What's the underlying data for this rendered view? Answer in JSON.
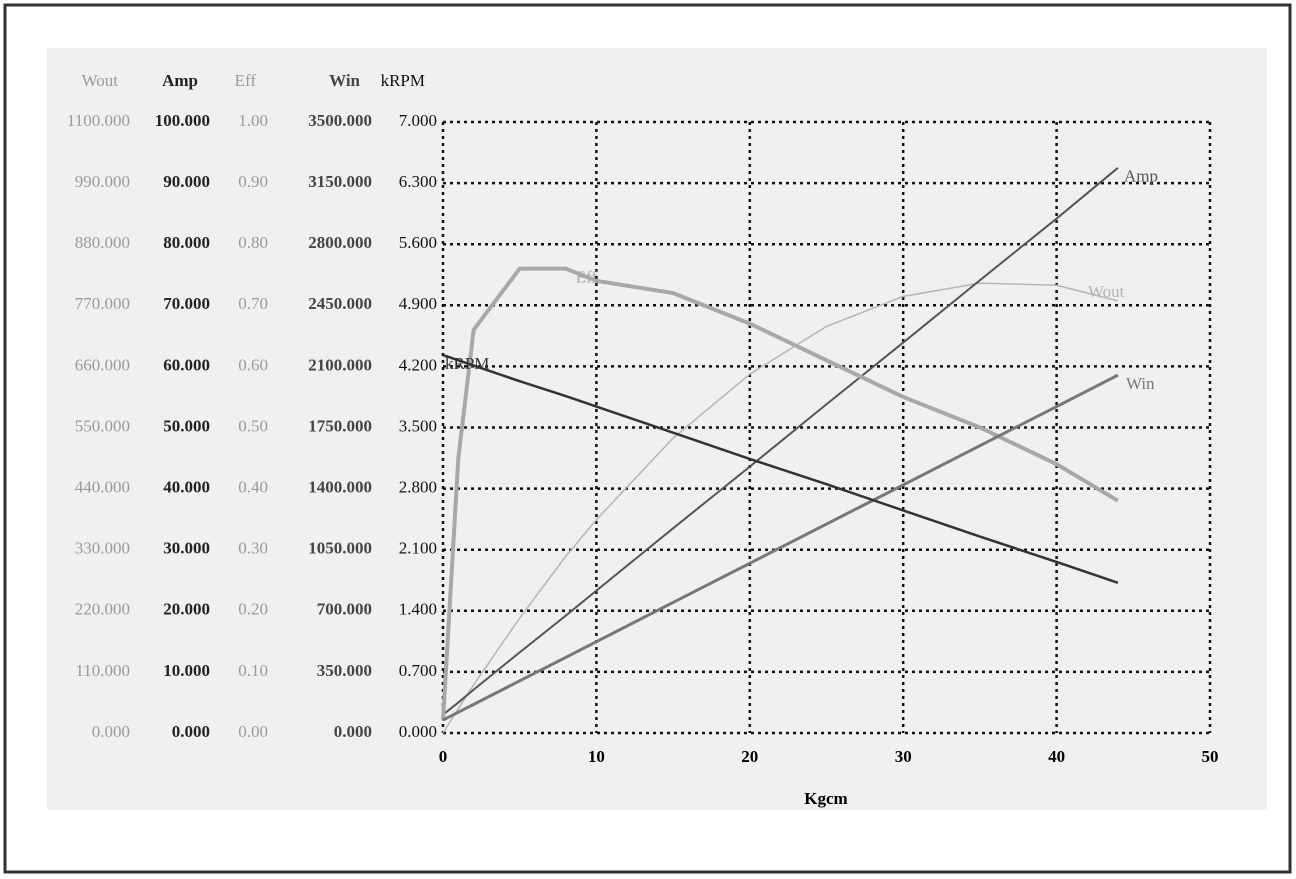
{
  "chart_data": {
    "type": "line",
    "xlabel": "Kgcm",
    "x": [
      0,
      1,
      2,
      5,
      8,
      10,
      15,
      20,
      25,
      30,
      35,
      40,
      44
    ],
    "xlim": [
      0,
      50
    ],
    "xticks": [
      0,
      10,
      20,
      30,
      40,
      50
    ],
    "grid": true,
    "yaxes": [
      {
        "title": "Wout",
        "color": "#9a9a9a",
        "lim": [
          0,
          1100
        ],
        "ticks": [
          {
            "value": 0,
            "label": "0.000"
          },
          {
            "value": 110,
            "label": "110.000"
          },
          {
            "value": 220,
            "label": "220.000"
          },
          {
            "value": 330,
            "label": "330.000"
          },
          {
            "value": 440,
            "label": "440.000"
          },
          {
            "value": 550,
            "label": "550.000"
          },
          {
            "value": 660,
            "label": "660.000"
          },
          {
            "value": 770,
            "label": "770.000"
          },
          {
            "value": 880,
            "label": "880.000"
          },
          {
            "value": 990,
            "label": "990.000"
          },
          {
            "value": 1100,
            "label": "1100.000"
          }
        ]
      },
      {
        "title": "Amp",
        "color": "#222222",
        "lim": [
          0,
          100
        ],
        "ticks": [
          {
            "value": 0,
            "label": "0.000"
          },
          {
            "value": 10,
            "label": "10.000"
          },
          {
            "value": 20,
            "label": "20.000"
          },
          {
            "value": 30,
            "label": "30.000"
          },
          {
            "value": 40,
            "label": "40.000"
          },
          {
            "value": 50,
            "label": "50.000"
          },
          {
            "value": 60,
            "label": "60.000"
          },
          {
            "value": 70,
            "label": "70.000"
          },
          {
            "value": 80,
            "label": "80.000"
          },
          {
            "value": 90,
            "label": "90.000"
          },
          {
            "value": 100,
            "label": "100.000"
          }
        ]
      },
      {
        "title": "Eff",
        "color": "#9a9a9a",
        "lim": [
          0,
          1
        ],
        "ticks": [
          {
            "value": 0,
            "label": "0.00"
          },
          {
            "value": 0.1,
            "label": "0.10"
          },
          {
            "value": 0.2,
            "label": "0.20"
          },
          {
            "value": 0.3,
            "label": "0.30"
          },
          {
            "value": 0.4,
            "label": "0.40"
          },
          {
            "value": 0.5,
            "label": "0.50"
          },
          {
            "value": 0.6,
            "label": "0.60"
          },
          {
            "value": 0.7,
            "label": "0.70"
          },
          {
            "value": 0.8,
            "label": "0.80"
          },
          {
            "value": 0.9,
            "label": "0.90"
          },
          {
            "value": 1,
            "label": "1.00"
          }
        ]
      },
      {
        "title": "Win",
        "color": "#444444",
        "lim": [
          0,
          3500
        ],
        "ticks": [
          {
            "value": 0,
            "label": "0.000"
          },
          {
            "value": 350,
            "label": "350.000"
          },
          {
            "value": 700,
            "label": "700.000"
          },
          {
            "value": 1050,
            "label": "1050.000"
          },
          {
            "value": 1400,
            "label": "1400.000"
          },
          {
            "value": 1750,
            "label": "1750.000"
          },
          {
            "value": 2100,
            "label": "2100.000"
          },
          {
            "value": 2450,
            "label": "2450.000"
          },
          {
            "value": 2800,
            "label": "2800.000"
          },
          {
            "value": 3150,
            "label": "3150.000"
          },
          {
            "value": 3500,
            "label": "3500.000"
          }
        ]
      },
      {
        "title": "kRPM",
        "color": "#111111",
        "lim": [
          0,
          7
        ],
        "ticks": [
          {
            "value": 0,
            "label": "0.000"
          },
          {
            "value": 0.7,
            "label": "0.700"
          },
          {
            "value": 1.4,
            "label": "1.400"
          },
          {
            "value": 2.1,
            "label": "2.100"
          },
          {
            "value": 2.8,
            "label": "2.800"
          },
          {
            "value": 3.5,
            "label": "3.500"
          },
          {
            "value": 4.2,
            "label": "4.200"
          },
          {
            "value": 4.9,
            "label": "4.900"
          },
          {
            "value": 5.6,
            "label": "5.600"
          },
          {
            "value": 6.3,
            "label": "6.300"
          },
          {
            "value": 7,
            "label": "7.000"
          }
        ]
      }
    ],
    "series": [
      {
        "name": "Wout",
        "axis": "Wout",
        "color": "#b5b5b5",
        "values": [
          0,
          44,
          87,
          207,
          318,
          384,
          531,
          646,
          732,
          786,
          810,
          806,
          778
        ]
      },
      {
        "name": "Amp",
        "axis": "Amp",
        "color": "#555555",
        "values": [
          3,
          5,
          7.1,
          13.2,
          19.2,
          23.3,
          33.5,
          43.6,
          53.8,
          63.9,
          74.1,
          84.2,
          92.5
        ]
      },
      {
        "name": "Eff",
        "axis": "Eff",
        "color": "#a8a8a8",
        "values": [
          0.02,
          0.45,
          0.66,
          0.76,
          0.76,
          0.74,
          0.72,
          0.67,
          0.61,
          0.55,
          0.5,
          0.44,
          0.38
        ]
      },
      {
        "name": "Win",
        "axis": "Win",
        "color": "#777777",
        "values": [
          74,
          119,
          164,
          299,
          433,
          523,
          748,
          972,
          1197,
          1421,
          1646,
          1870,
          2050
        ]
      },
      {
        "name": "kRPM",
        "axis": "kRPM",
        "color": "#333333",
        "values": [
          4.33,
          4.27,
          4.21,
          4.03,
          3.86,
          3.74,
          3.44,
          3.14,
          2.85,
          2.55,
          2.25,
          1.96,
          1.72
        ]
      }
    ]
  }
}
